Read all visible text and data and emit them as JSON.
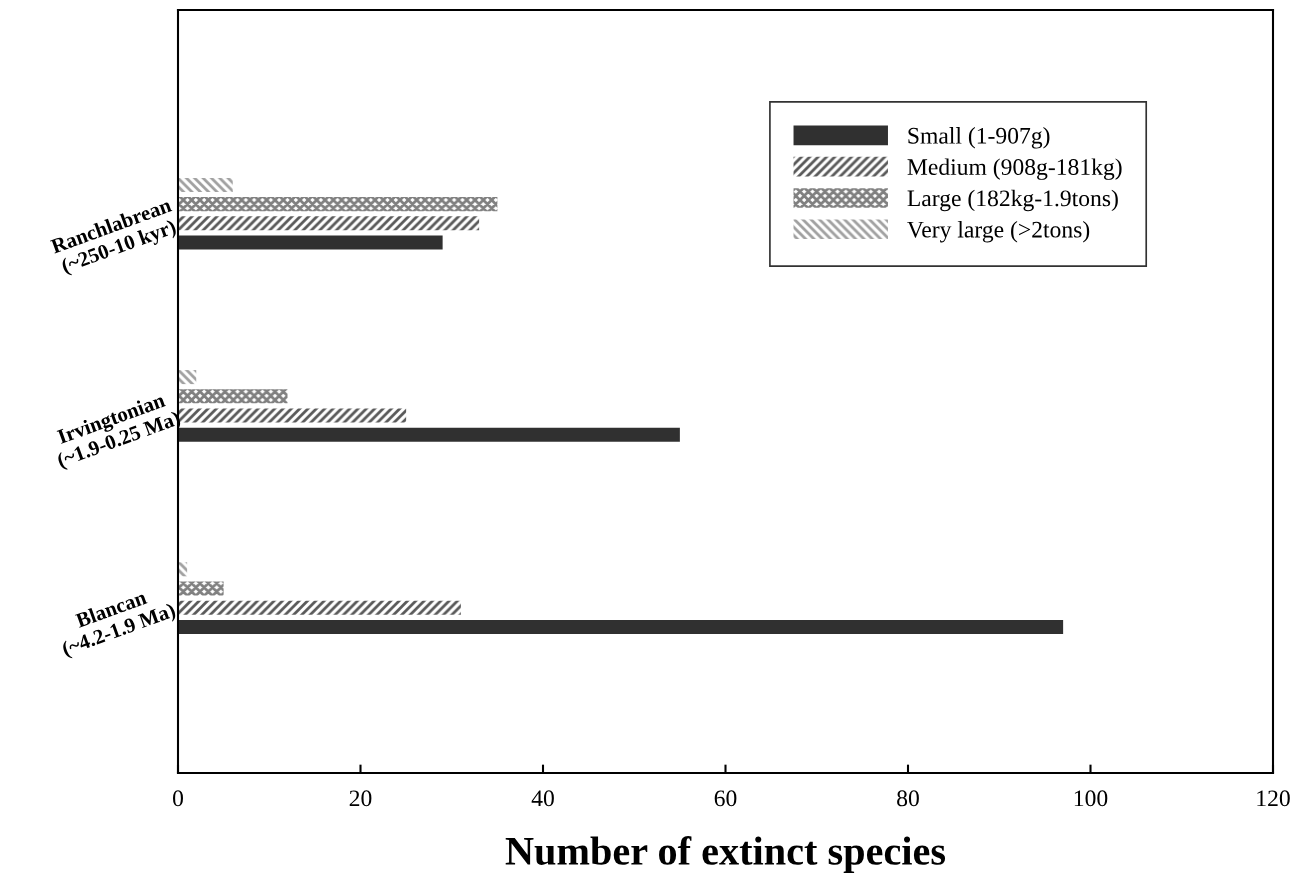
{
  "chart_data": {
    "type": "bar",
    "orientation": "horizontal",
    "xlabel": "Number of extinct species",
    "categories": [
      "Ranchlabrean\n(~250-10 kyr)",
      "Irvingtonian\n(~1.9-0.25 Ma)",
      "Blancan\n(~4.2-1.9 Ma)"
    ],
    "series": [
      {
        "name": "Small (1-907g)",
        "color": "#303030",
        "values": [
          29,
          55,
          97
        ]
      },
      {
        "name": "Medium (908g-181kg)",
        "color": "#595959",
        "values": [
          33,
          25,
          31
        ]
      },
      {
        "name": "Large (182kg-1.9tons)",
        "color": "#808080",
        "values": [
          35,
          12,
          5
        ]
      },
      {
        "name": "Very large (>2tons)",
        "color": "#a0a0a0",
        "values": [
          6,
          2,
          1
        ]
      }
    ],
    "xlim": [
      0,
      120
    ],
    "xticks": [
      0,
      20,
      40,
      60,
      80,
      100,
      120
    ],
    "grid": false,
    "legend": "top right"
  }
}
